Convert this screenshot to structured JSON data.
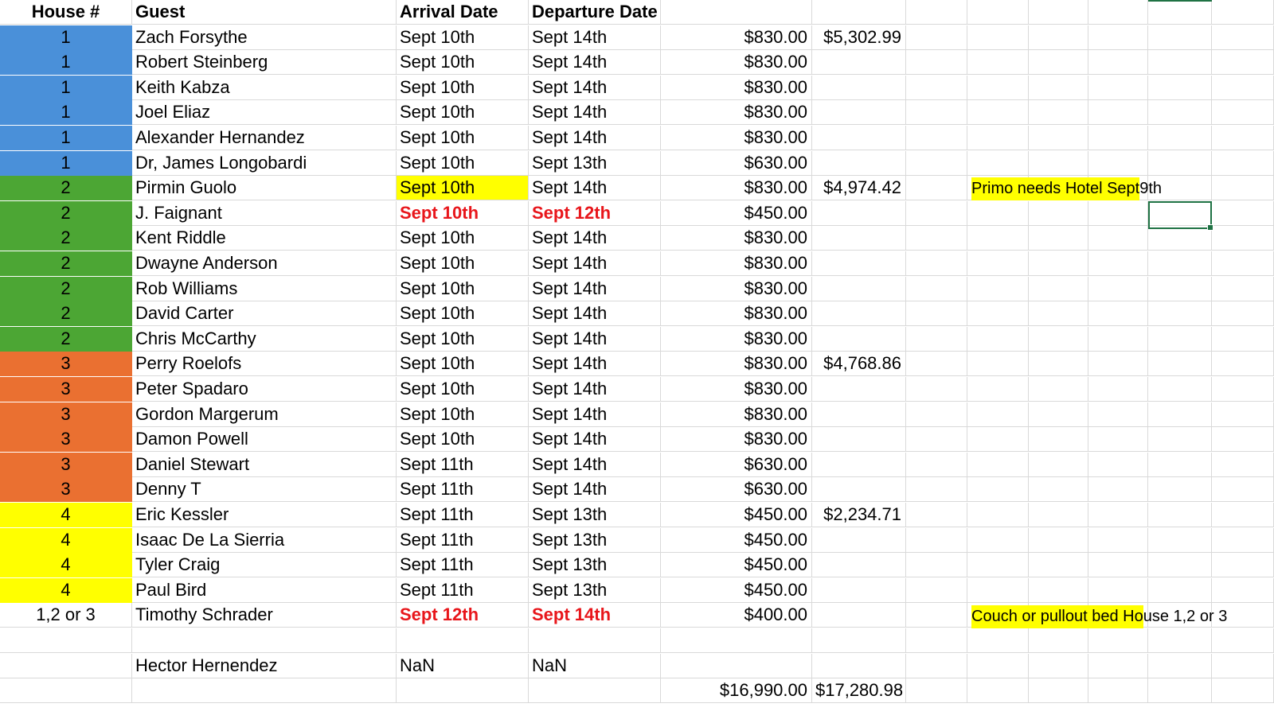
{
  "colors": {
    "house1": "#4a90d9",
    "house2": "#4ca634",
    "house3": "#ea7031",
    "house4": "#ffff00",
    "highlight": "#ffff00",
    "alert_red": "#e8161b",
    "selection": "#1f7244"
  },
  "header": {
    "house": "House #",
    "guest": "Guest",
    "arrival": "Arrival Date",
    "departure": "Departure Date"
  },
  "rows": [
    {
      "house": "1",
      "guest": "Zach Forsythe",
      "arrival": "Sept 10th",
      "departure": "Sept 14th",
      "amount": "$830.00",
      "house_total": "$5,302.99",
      "group": "house1"
    },
    {
      "house": "1",
      "guest": "Robert Steinberg",
      "arrival": "Sept 10th",
      "departure": "Sept 14th",
      "amount": "$830.00",
      "house_total": "",
      "group": "house1"
    },
    {
      "house": "1",
      "guest": "Keith Kabza",
      "arrival": "Sept 10th",
      "departure": "Sept 14th",
      "amount": "$830.00",
      "house_total": "",
      "group": "house1"
    },
    {
      "house": "1",
      "guest": "Joel Eliaz",
      "arrival": "Sept 10th",
      "departure": "Sept 14th",
      "amount": "$830.00",
      "house_total": "",
      "group": "house1"
    },
    {
      "house": "1",
      "guest": "Alexander Hernandez",
      "arrival": "Sept 10th",
      "departure": "Sept 14th",
      "amount": "$830.00",
      "house_total": "",
      "group": "house1"
    },
    {
      "house": "1",
      "guest": "Dr, James Longobardi",
      "arrival": "Sept 10th",
      "departure": "Sept 13th",
      "amount": "$630.00",
      "house_total": "",
      "group": "house1"
    },
    {
      "house": "2",
      "guest": "Pirmin Guolo",
      "arrival": "Sept 10th",
      "departure": "Sept 14th",
      "amount": "$830.00",
      "house_total": "$4,974.42",
      "group": "house2",
      "arrival_style": "hl-yellow"
    },
    {
      "house": "2",
      "guest": "J. Faignant",
      "arrival": "Sept 10th",
      "departure": "Sept 12th",
      "amount": "$450.00",
      "house_total": "",
      "group": "house2",
      "arrival_style": "bold-red",
      "departure_style": "bold-red"
    },
    {
      "house": "2",
      "guest": "Kent Riddle",
      "arrival": "Sept 10th",
      "departure": "Sept 14th",
      "amount": "$830.00",
      "house_total": "",
      "group": "house2"
    },
    {
      "house": "2",
      "guest": "Dwayne Anderson",
      "arrival": "Sept 10th",
      "departure": "Sept 14th",
      "amount": "$830.00",
      "house_total": "",
      "group": "house2"
    },
    {
      "house": "2",
      "guest": "Rob Williams",
      "arrival": "Sept 10th",
      "departure": "Sept 14th",
      "amount": "$830.00",
      "house_total": "",
      "group": "house2"
    },
    {
      "house": "2",
      "guest": "David Carter",
      "arrival": "Sept 10th",
      "departure": "Sept 14th",
      "amount": "$830.00",
      "house_total": "",
      "group": "house2"
    },
    {
      "house": "2",
      "guest": "Chris McCarthy",
      "arrival": "Sept 10th",
      "departure": "Sept 14th",
      "amount": "$830.00",
      "house_total": "",
      "group": "house2"
    },
    {
      "house": "3",
      "guest": "Perry Roelofs",
      "arrival": "Sept 10th",
      "departure": "Sept 14th",
      "amount": "$830.00",
      "house_total": "$4,768.86",
      "group": "house3"
    },
    {
      "house": "3",
      "guest": "Peter Spadaro",
      "arrival": "Sept 10th",
      "departure": "Sept 14th",
      "amount": "$830.00",
      "house_total": "",
      "group": "house3"
    },
    {
      "house": "3",
      "guest": "Gordon Margerum",
      "arrival": "Sept 10th",
      "departure": "Sept 14th",
      "amount": "$830.00",
      "house_total": "",
      "group": "house3"
    },
    {
      "house": "3",
      "guest": "Damon Powell",
      "arrival": "Sept 10th",
      "departure": "Sept 14th",
      "amount": "$830.00",
      "house_total": "",
      "group": "house3"
    },
    {
      "house": "3",
      "guest": "Daniel Stewart",
      "arrival": "Sept 11th",
      "departure": "Sept 14th",
      "amount": "$630.00",
      "house_total": "",
      "group": "house3"
    },
    {
      "house": "3",
      "guest": "Denny T",
      "arrival": "Sept 11th",
      "departure": "Sept 14th",
      "amount": "$630.00",
      "house_total": "",
      "group": "house3"
    },
    {
      "house": "4",
      "guest": "Eric Kessler",
      "arrival": "Sept 11th",
      "departure": "Sept 13th",
      "amount": "$450.00",
      "house_total": "$2,234.71",
      "group": "house4"
    },
    {
      "house": "4",
      "guest": "Isaac De La Sierria",
      "arrival": "Sept 11th",
      "departure": "Sept 13th",
      "amount": "$450.00",
      "house_total": "",
      "group": "house4"
    },
    {
      "house": "4",
      "guest": "Tyler Craig",
      "arrival": "Sept 11th",
      "departure": "Sept 13th",
      "amount": "$450.00",
      "house_total": "",
      "group": "house4"
    },
    {
      "house": "4",
      "guest": "Paul Bird",
      "arrival": "Sept 11th",
      "departure": "Sept 13th",
      "amount": "$450.00",
      "house_total": "",
      "group": "house4"
    },
    {
      "house": "1,2 or 3",
      "guest": "Timothy Schrader",
      "arrival": "Sept 12th",
      "departure": "Sept 14th",
      "amount": "$400.00",
      "house_total": "",
      "group": "",
      "arrival_style": "bold-red",
      "departure_style": "bold-red"
    },
    {
      "house": "",
      "guest": "",
      "arrival": "",
      "departure": "",
      "amount": "",
      "house_total": "",
      "group": ""
    },
    {
      "house": "",
      "guest": "Hector Hernendez",
      "arrival": "NaN",
      "departure": "NaN",
      "amount": "",
      "house_total": "",
      "group": ""
    },
    {
      "house": "",
      "guest": "",
      "arrival": "",
      "departure": "",
      "amount": "$16,990.00",
      "house_total": "$17,280.98",
      "group": ""
    }
  ],
  "notes": {
    "primo_highlighted": "Primo needs Hotel Sept ",
    "primo_rest": "9th",
    "couch_highlighted": "Couch or pullout bed Ho",
    "couch_rest": "use 1,2 or 3"
  }
}
